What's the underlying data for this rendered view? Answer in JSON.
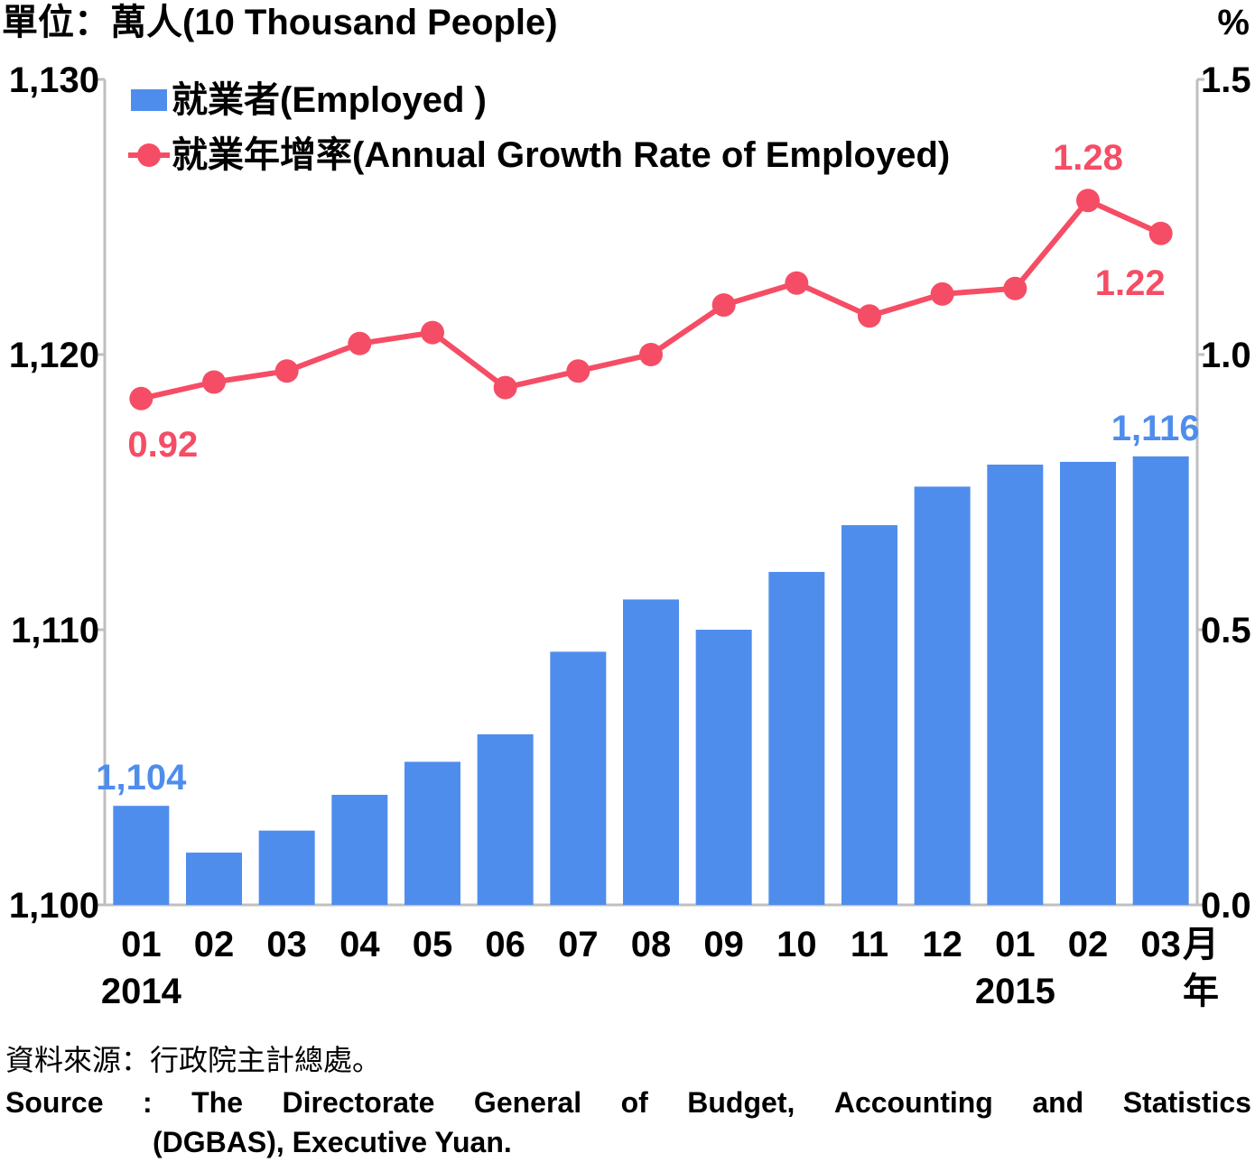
{
  "chart_data": {
    "type": "bar+line",
    "unit_label": "單位：萬人(10 Thousand People)",
    "right_unit_label": "%",
    "categories": [
      "01",
      "02",
      "03",
      "04",
      "05",
      "06",
      "07",
      "08",
      "09",
      "10",
      "11",
      "12",
      "01",
      "02",
      "03"
    ],
    "category_suffix": "月",
    "years": [
      {
        "label": "2014",
        "index": 0
      },
      {
        "label": "2015",
        "index": 12
      }
    ],
    "year_suffix": "年",
    "left_axis": {
      "min": 1100,
      "max": 1130,
      "ticks": [
        "1,100",
        "1,110",
        "1,120",
        "1,130"
      ],
      "tick_values": [
        1100,
        1110,
        1120,
        1130
      ]
    },
    "right_axis": {
      "min": 0.0,
      "max": 1.5,
      "ticks": [
        "0.0",
        "0.5",
        "1.0",
        "1.5"
      ],
      "tick_values": [
        0.0,
        0.5,
        1.0,
        1.5
      ]
    },
    "series": [
      {
        "name": "就業者(Employed )",
        "type": "bar",
        "axis": "left",
        "color": "#4f8ded",
        "values": [
          1103.6,
          1101.9,
          1102.7,
          1104.0,
          1105.2,
          1106.2,
          1109.2,
          1111.1,
          1110.0,
          1112.1,
          1113.8,
          1115.2,
          1116.0,
          1116.1,
          1116.3
        ],
        "labels": [
          {
            "index": 0,
            "text": "1,104"
          },
          {
            "index": 14,
            "text": "1,116"
          }
        ]
      },
      {
        "name": "就業年增率(Annual Growth Rate of Employed)",
        "type": "line",
        "axis": "right",
        "color": "#f54d65",
        "values": [
          0.92,
          0.95,
          0.97,
          1.02,
          1.04,
          0.94,
          0.97,
          1.0,
          1.09,
          1.13,
          1.07,
          1.11,
          1.12,
          1.28,
          1.22
        ],
        "labels": [
          {
            "index": 0,
            "text": "0.92"
          },
          {
            "index": 13,
            "text": "1.28"
          },
          {
            "index": 14,
            "text": "1.22"
          }
        ]
      }
    ],
    "legend_position": "top-left"
  },
  "source": {
    "cn": "資料來源：行政院主計總處。",
    "en_words": [
      "Source",
      ":",
      "The",
      "Directorate",
      "General",
      "of",
      "Budget,",
      "Accounting",
      "and",
      "Statistics"
    ],
    "en_line2": "(DGBAS), Executive Yuan."
  }
}
